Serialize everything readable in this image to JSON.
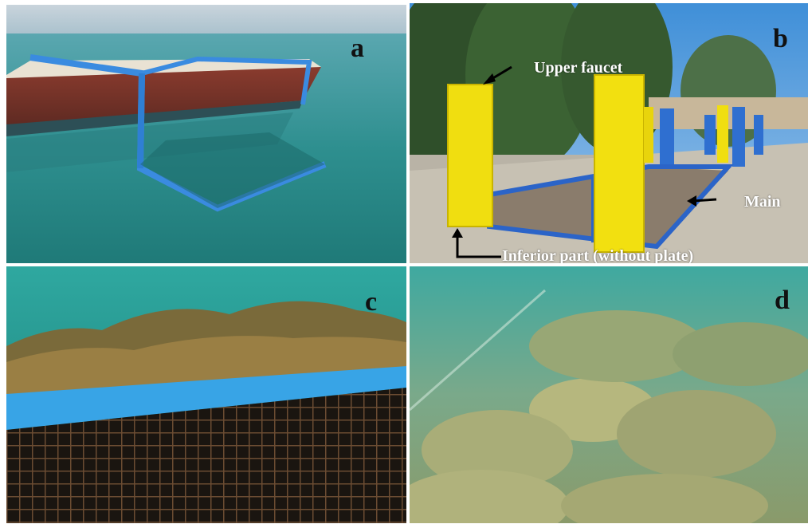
{
  "panels": [
    {
      "label": "a"
    },
    {
      "label": "b"
    },
    {
      "label": "c"
    },
    {
      "label": "d"
    }
  ],
  "annotations": {
    "upper_faucet": "Upper faucet",
    "main": "Main",
    "inferior_part": "Inferior part (without plate)"
  }
}
